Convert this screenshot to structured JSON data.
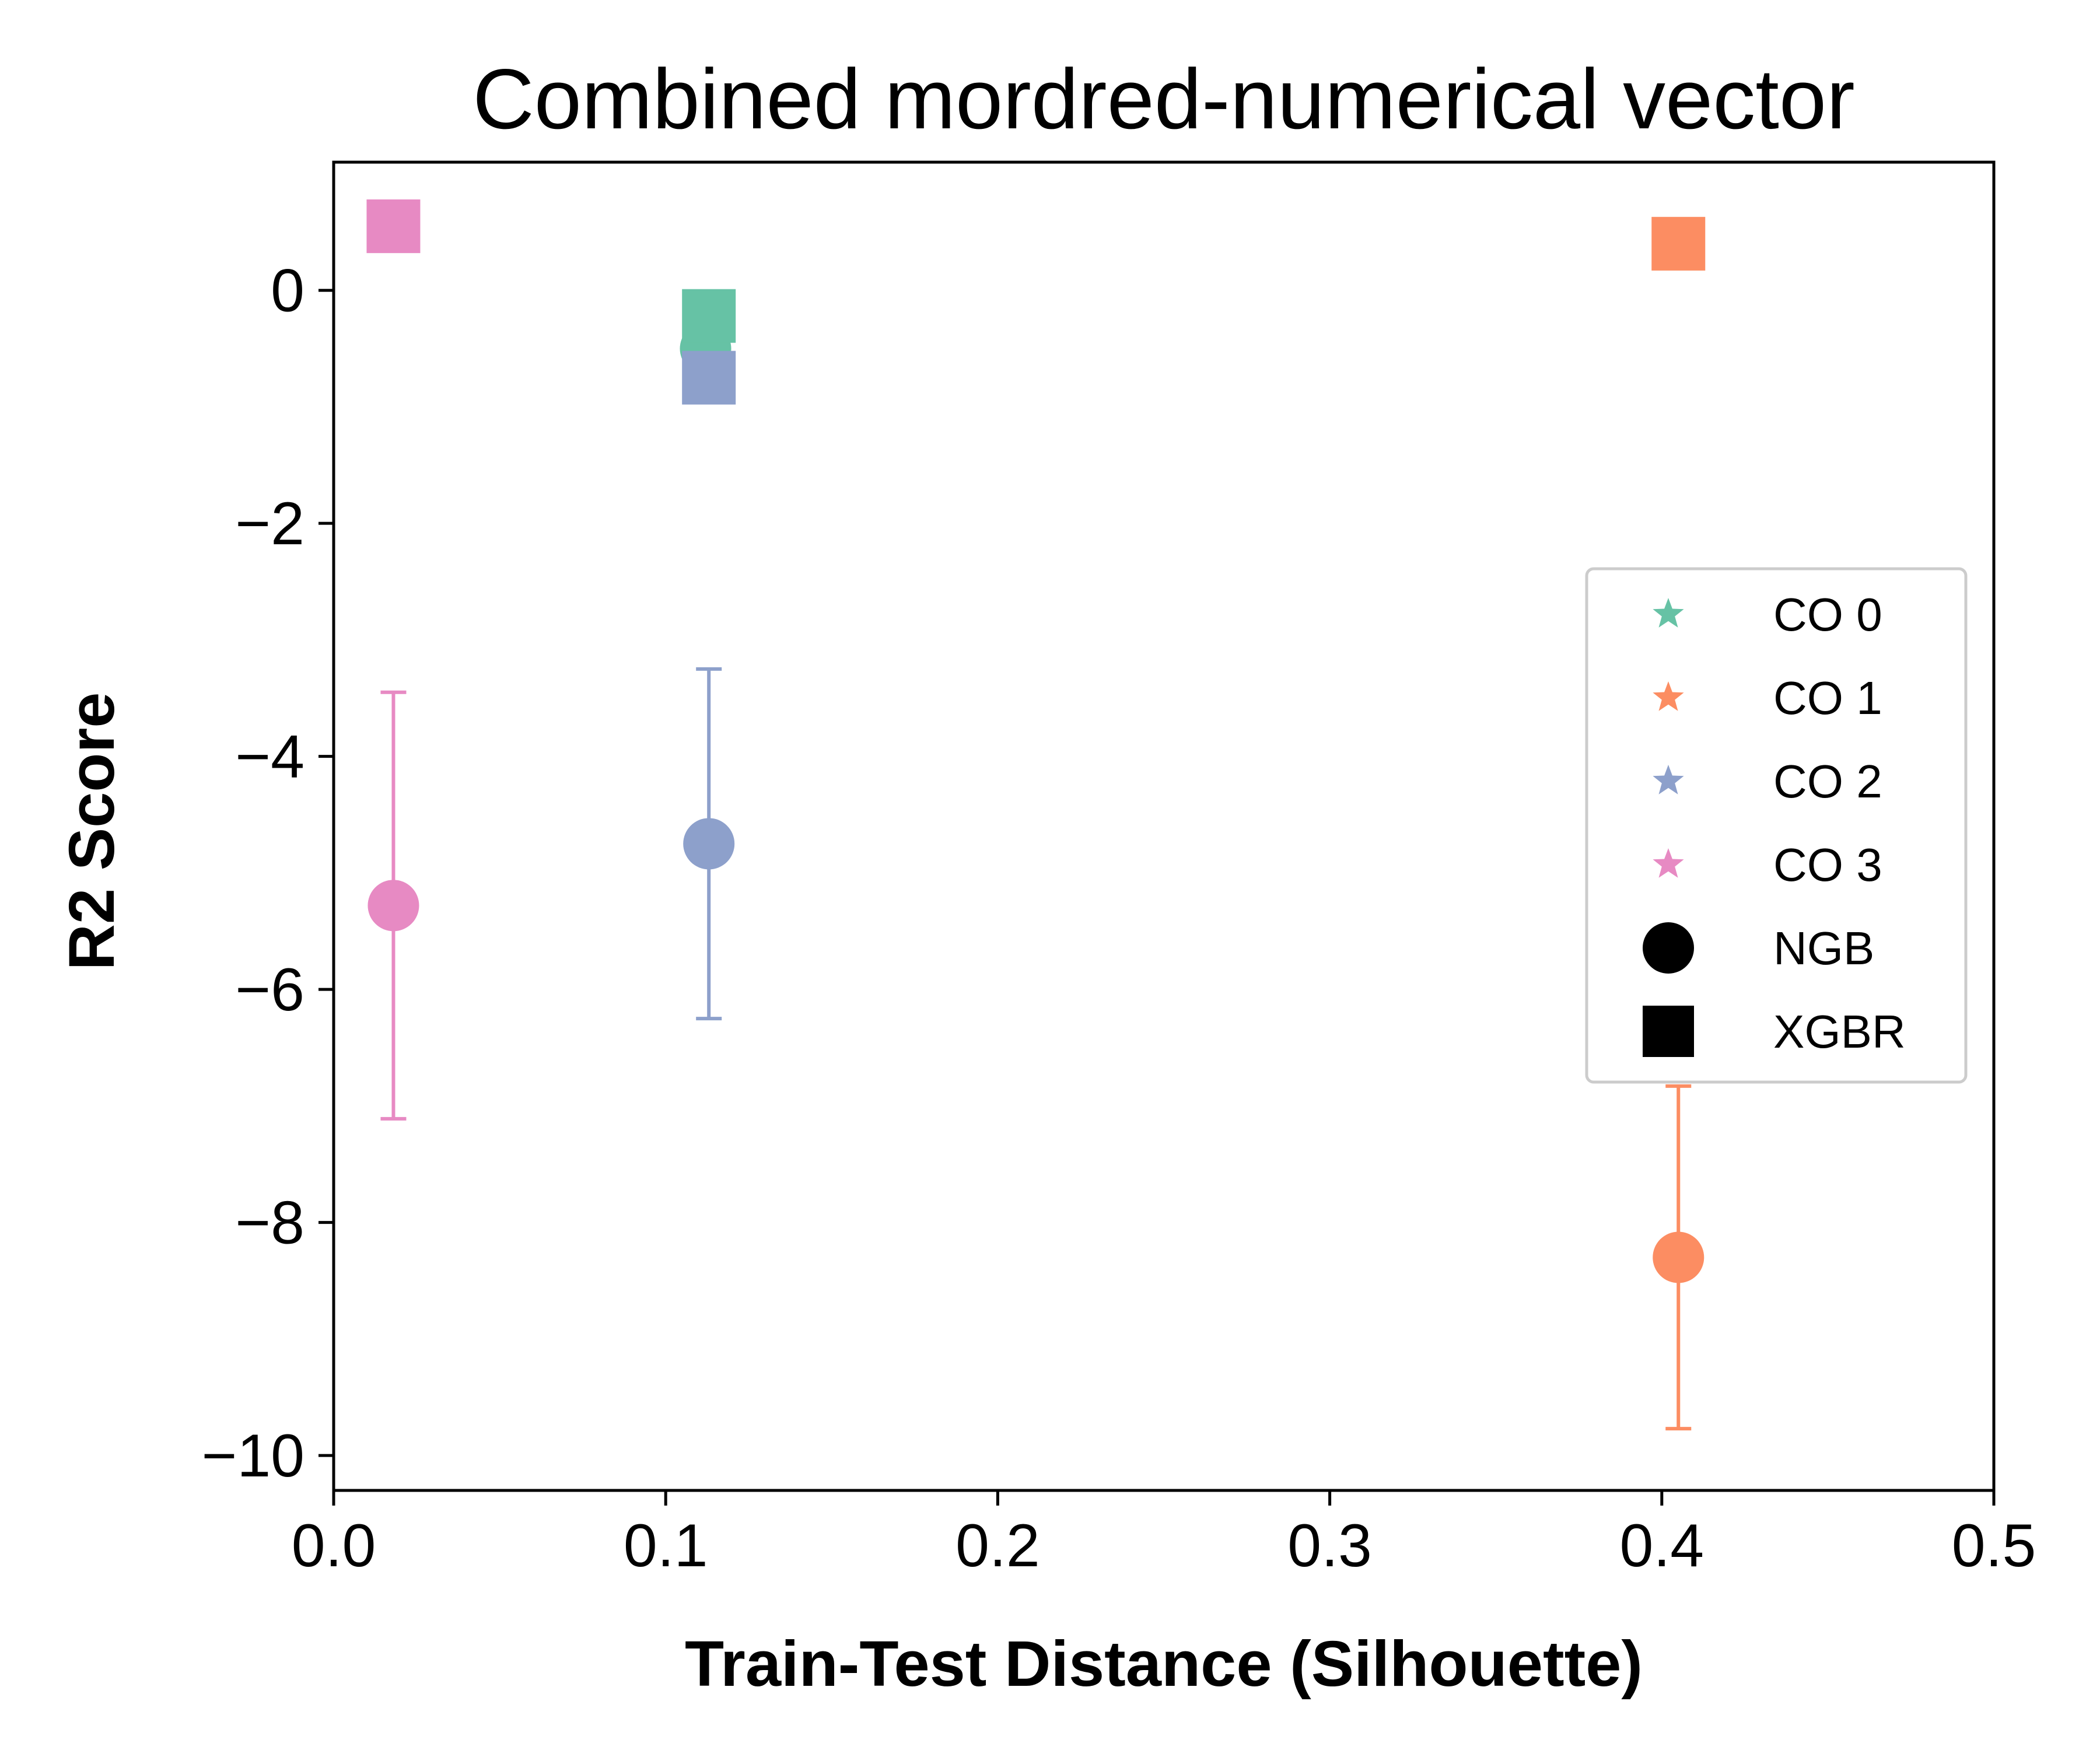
{
  "chart_data": {
    "type": "scatter",
    "title": "Combined mordred-numerical vector",
    "xlabel": "Train-Test Distance (Silhouette)",
    "ylabel": "R2 Score",
    "xlim": [
      0.0,
      0.5
    ],
    "ylim": [
      -10.3,
      1.1
    ],
    "xticks": [
      0.0,
      0.1,
      0.2,
      0.3,
      0.4,
      0.5
    ],
    "xtick_labels": [
      "0.0",
      "0.1",
      "0.2",
      "0.3",
      "0.4",
      "0.5"
    ],
    "yticks": [
      0,
      -2,
      -4,
      -6,
      -8,
      -10
    ],
    "ytick_labels": [
      "0",
      "−2",
      "−4",
      "−6",
      "−8",
      "−10"
    ],
    "grid": false,
    "legend_position": "center-right",
    "legend": [
      {
        "label": "CO 0",
        "marker": "star",
        "color": "#66c2a5"
      },
      {
        "label": "CO 1",
        "marker": "star",
        "color": "#fc8d62"
      },
      {
        "label": "CO 2",
        "marker": "star",
        "color": "#8da0cb"
      },
      {
        "label": "CO 3",
        "marker": "star",
        "color": "#e78ac3"
      },
      {
        "label": "NGB",
        "marker": "circle",
        "color": "#000000"
      },
      {
        "label": "XGBR",
        "marker": "square",
        "color": "#000000"
      }
    ],
    "series": [
      {
        "name": "NGB",
        "marker": "circle",
        "points": [
          {
            "group": "CO 0",
            "color": "#66c2a5",
            "x": 0.112,
            "y": -0.5,
            "err": 0.45
          },
          {
            "group": "CO 1",
            "color": "#fc8d62",
            "x": 0.405,
            "y": -8.3,
            "err": 1.47
          },
          {
            "group": "CO 2",
            "color": "#8da0cb",
            "x": 0.113,
            "y": -4.75,
            "err": 1.5
          },
          {
            "group": "CO 3",
            "color": "#e78ac3",
            "x": 0.018,
            "y": -5.28,
            "err": 1.83
          }
        ]
      },
      {
        "name": "XGBR",
        "marker": "square",
        "points": [
          {
            "group": "CO 0",
            "color": "#66c2a5",
            "x": 0.113,
            "y": -0.22
          },
          {
            "group": "CO 1",
            "color": "#fc8d62",
            "x": 0.405,
            "y": 0.4
          },
          {
            "group": "CO 2",
            "color": "#8da0cb",
            "x": 0.113,
            "y": -0.75
          },
          {
            "group": "CO 3",
            "color": "#e78ac3",
            "x": 0.018,
            "y": 0.55
          }
        ]
      }
    ]
  }
}
